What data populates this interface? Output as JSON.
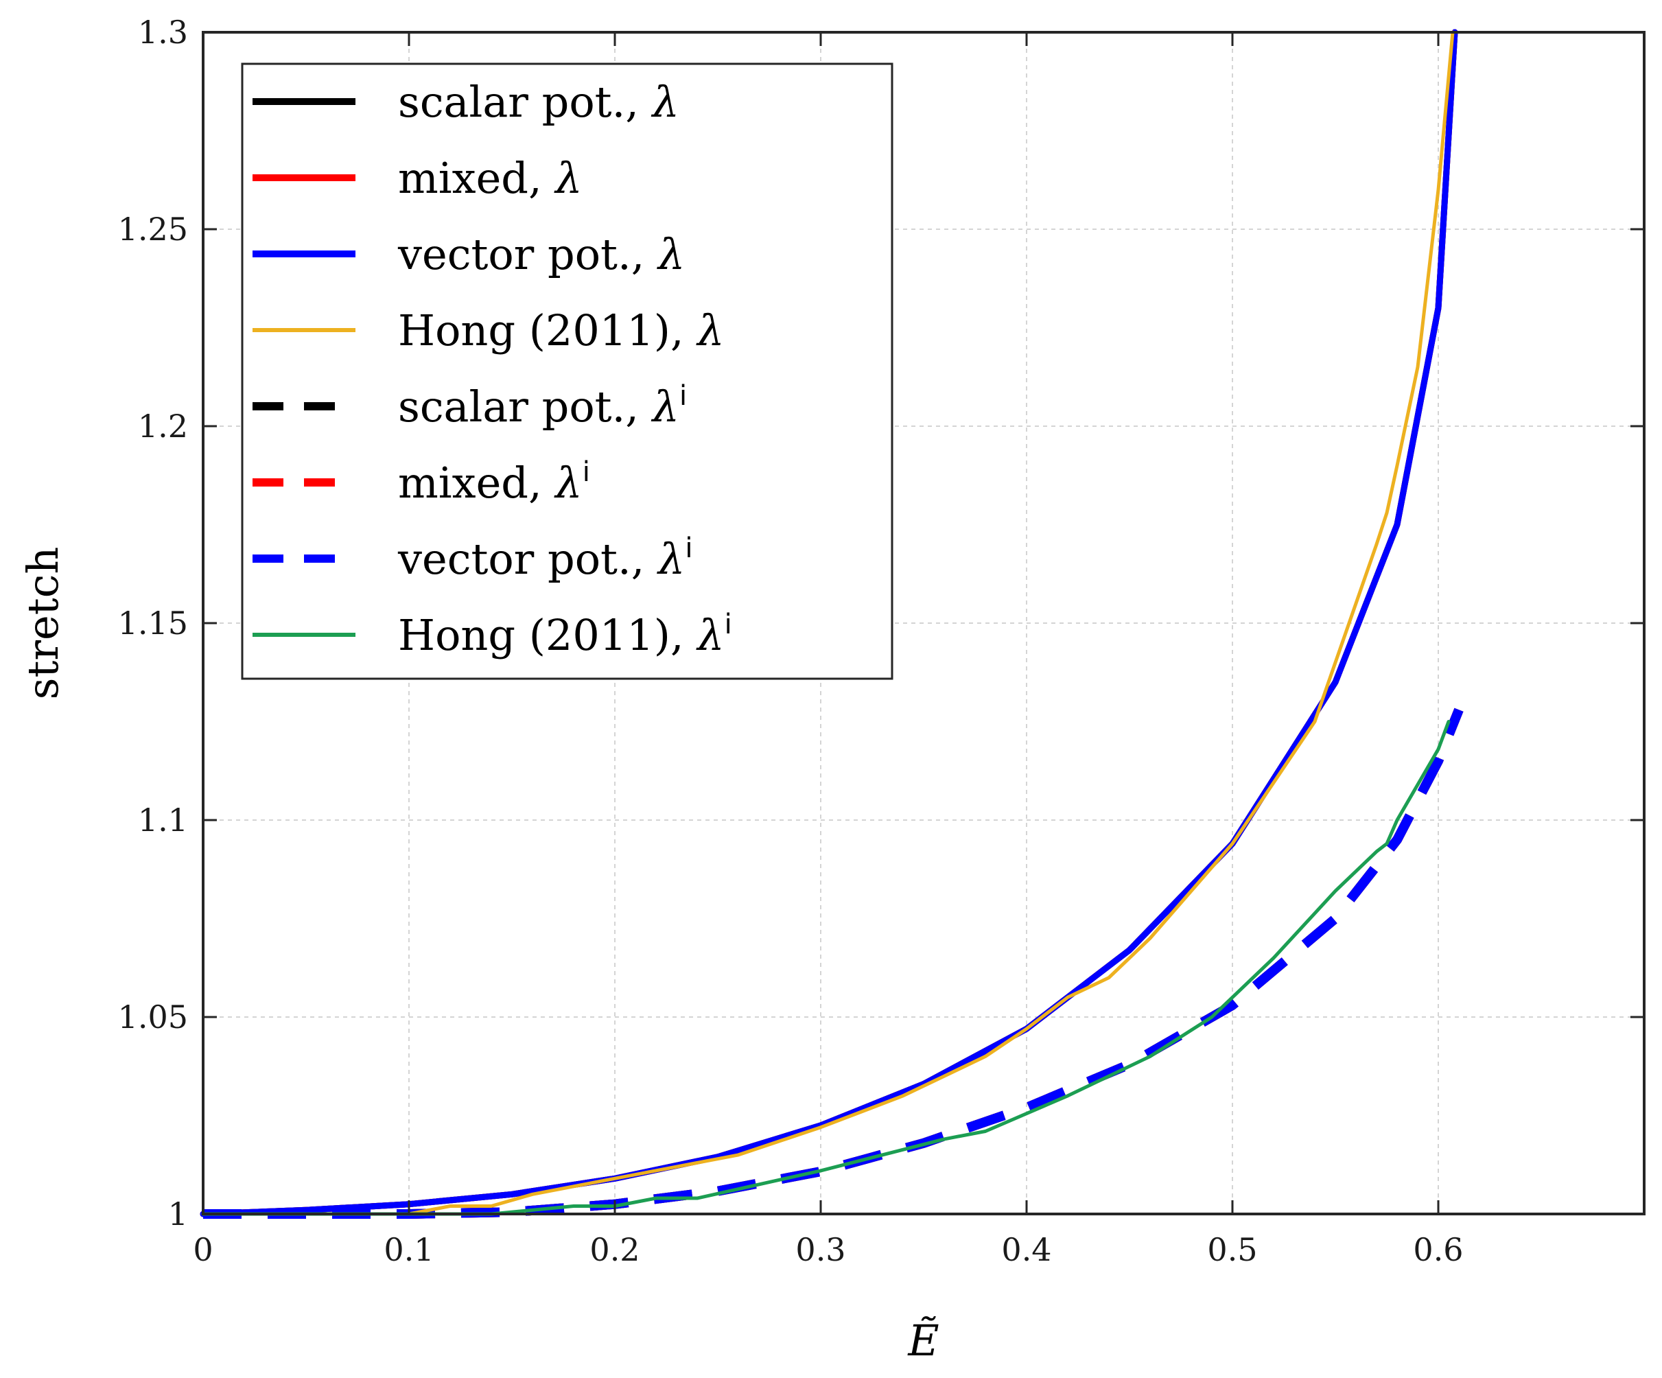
{
  "chart_data": {
    "type": "line",
    "title": "",
    "xlabel": "Ẽ",
    "ylabel": "stretch",
    "xlim": [
      0,
      0.7
    ],
    "ylim": [
      1,
      1.3
    ],
    "x_ticks": [
      0,
      0.1,
      0.2,
      0.3,
      0.4,
      0.5,
      0.6
    ],
    "x_tick_labels": [
      "0",
      "0.1",
      "0.2",
      "0.3",
      "0.4",
      "0.5",
      "0.6"
    ],
    "y_ticks": [
      1,
      1.05,
      1.1,
      1.15,
      1.2,
      1.25,
      1.3
    ],
    "y_tick_labels": [
      "1",
      "1.05",
      "1.1",
      "1.15",
      "1.2",
      "1.25",
      "1.3"
    ],
    "grid": true,
    "legend_position": "top-left",
    "series": [
      {
        "name": "scalar pot., λ",
        "label_main": "scalar pot., ",
        "label_sym": "λ",
        "label_sup": "",
        "color": "#000000",
        "style": "solid",
        "width": 9,
        "x": [
          0,
          0.05,
          0.1,
          0.15,
          0.2,
          0.25,
          0.3,
          0.35,
          0.4,
          0.45,
          0.5,
          0.55,
          0.58,
          0.6,
          0.608
        ],
        "y": [
          1.0,
          1.001,
          1.0025,
          1.005,
          1.009,
          1.0145,
          1.0225,
          1.033,
          1.047,
          1.067,
          1.094,
          1.135,
          1.175,
          1.23,
          1.3
        ]
      },
      {
        "name": "mixed, λ",
        "label_main": "mixed, ",
        "label_sym": "λ",
        "label_sup": "",
        "color": "#ff0000",
        "style": "solid",
        "width": 9,
        "x": [
          0,
          0.05,
          0.1,
          0.15,
          0.2,
          0.25,
          0.3,
          0.35,
          0.4,
          0.45,
          0.5,
          0.55,
          0.58,
          0.6,
          0.608
        ],
        "y": [
          1.0,
          1.001,
          1.0025,
          1.005,
          1.009,
          1.0145,
          1.0225,
          1.033,
          1.047,
          1.067,
          1.094,
          1.135,
          1.175,
          1.23,
          1.3
        ]
      },
      {
        "name": "vector pot., λ",
        "label_main": "vector pot., ",
        "label_sym": "λ",
        "label_sup": "",
        "color": "#0000ff",
        "style": "solid",
        "width": 9,
        "x": [
          0,
          0.05,
          0.1,
          0.15,
          0.2,
          0.25,
          0.3,
          0.35,
          0.4,
          0.45,
          0.5,
          0.55,
          0.58,
          0.6,
          0.608
        ],
        "y": [
          1.0,
          1.001,
          1.0025,
          1.005,
          1.009,
          1.0145,
          1.0225,
          1.033,
          1.047,
          1.067,
          1.094,
          1.135,
          1.175,
          1.23,
          1.3
        ]
      },
      {
        "name": "Hong (2011), λ",
        "label_main": "Hong (2011), ",
        "label_sym": "λ",
        "label_sup": "",
        "color": "#edb120",
        "style": "solid",
        "width": 5,
        "x": [
          0,
          0.1,
          0.12,
          0.14,
          0.16,
          0.2,
          0.26,
          0.3,
          0.34,
          0.36,
          0.38,
          0.4,
          0.42,
          0.44,
          0.46,
          0.5,
          0.54,
          0.56,
          0.57,
          0.575,
          0.58,
          0.59,
          0.6,
          0.607
        ],
        "y": [
          1.0,
          1.0,
          1.002,
          1.002,
          1.005,
          1.009,
          1.015,
          1.022,
          1.03,
          1.035,
          1.04,
          1.047,
          1.055,
          1.06,
          1.07,
          1.094,
          1.125,
          1.155,
          1.17,
          1.178,
          1.19,
          1.215,
          1.26,
          1.3
        ]
      },
      {
        "name": "scalar pot., λi",
        "label_main": "scalar pot., ",
        "label_sym": "λ",
        "label_sup": "i",
        "color": "#000000",
        "style": "dashed",
        "width": 14,
        "x": [
          0,
          0.1,
          0.15,
          0.2,
          0.25,
          0.3,
          0.35,
          0.4,
          0.45,
          0.5,
          0.55,
          0.58,
          0.6,
          0.61
        ],
        "y": [
          1.0,
          1.0,
          1.0005,
          1.0025,
          1.0058,
          1.0108,
          1.018,
          1.027,
          1.038,
          1.053,
          1.075,
          1.095,
          1.115,
          1.128
        ]
      },
      {
        "name": "mixed, λi",
        "label_main": "mixed, ",
        "label_sym": "λ",
        "label_sup": "i",
        "color": "#ff0000",
        "style": "dashed",
        "width": 14,
        "x": [
          0,
          0.1,
          0.15,
          0.2,
          0.25,
          0.3,
          0.35,
          0.4,
          0.45,
          0.5,
          0.55,
          0.58,
          0.6,
          0.61
        ],
        "y": [
          1.0,
          1.0,
          1.0005,
          1.0025,
          1.0058,
          1.0108,
          1.018,
          1.027,
          1.038,
          1.053,
          1.075,
          1.095,
          1.115,
          1.128
        ]
      },
      {
        "name": "vector pot., λi",
        "label_main": "vector pot., ",
        "label_sym": "λ",
        "label_sup": "i",
        "color": "#0000ff",
        "style": "dashed",
        "width": 14,
        "x": [
          0,
          0.1,
          0.15,
          0.2,
          0.25,
          0.3,
          0.35,
          0.4,
          0.45,
          0.5,
          0.55,
          0.58,
          0.6,
          0.61
        ],
        "y": [
          1.0,
          1.0,
          1.0005,
          1.0025,
          1.0058,
          1.0108,
          1.018,
          1.027,
          1.038,
          1.053,
          1.075,
          1.095,
          1.115,
          1.128
        ]
      },
      {
        "name": "Hong (2011), λi",
        "label_main": "Hong (2011), ",
        "label_sym": "λ",
        "label_sup": "i",
        "color": "#1c9e52",
        "style": "solid",
        "width": 5,
        "x": [
          0,
          0.14,
          0.18,
          0.2,
          0.22,
          0.24,
          0.3,
          0.36,
          0.38,
          0.42,
          0.46,
          0.49,
          0.5,
          0.52,
          0.55,
          0.57,
          0.575,
          0.58,
          0.6,
          0.605
        ],
        "y": [
          1.0,
          1.0,
          1.002,
          1.002,
          1.004,
          1.004,
          1.011,
          1.019,
          1.021,
          1.03,
          1.04,
          1.05,
          1.055,
          1.065,
          1.082,
          1.092,
          1.094,
          1.1,
          1.118,
          1.125
        ]
      }
    ]
  }
}
